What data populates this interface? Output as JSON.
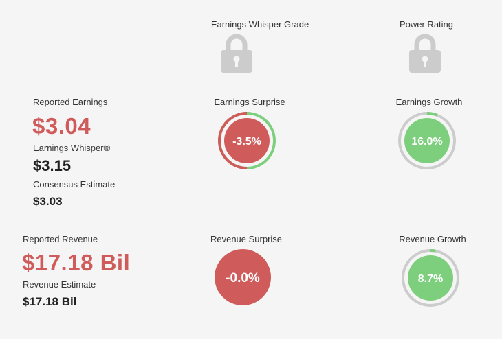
{
  "headers": {
    "whisper_grade": "Earnings Whisper Grade",
    "power_rating": "Power Rating"
  },
  "earnings": {
    "reported_label": "Reported Earnings",
    "reported_value": "$3.04",
    "whisper_label": "Earnings Whisper®",
    "whisper_value": "$3.15",
    "consensus_label": "Consensus Estimate",
    "consensus_value": "$3.03"
  },
  "revenue": {
    "reported_label": "Reported Revenue",
    "reported_value": "$17.18 Bil",
    "estimate_label": "Revenue Estimate",
    "estimate_value": "$17.18 Bil"
  },
  "metrics": {
    "earnings_surprise": {
      "label": "Earnings Surprise",
      "value": "-3.5%",
      "fraction": 0.5,
      "color": "#cf5b5b"
    },
    "earnings_growth": {
      "label": "Earnings Growth",
      "value": "16.0%",
      "fraction": 0.06,
      "color": "#7dcf7d"
    },
    "revenue_surprise": {
      "label": "Revenue Surprise",
      "value": "-0.0%",
      "color": "#cf5b5b"
    },
    "revenue_growth": {
      "label": "Revenue Growth",
      "value": "8.7%",
      "fraction": 0.03,
      "color": "#7dcf7d"
    }
  },
  "colors": {
    "red": "#cf5b5b",
    "green": "#7dcf7d",
    "ring_gray": "#cccccc",
    "lock_gray": "#cccccc"
  },
  "icons": {
    "whisper_grade": "lock-icon",
    "power_rating": "lock-icon"
  }
}
